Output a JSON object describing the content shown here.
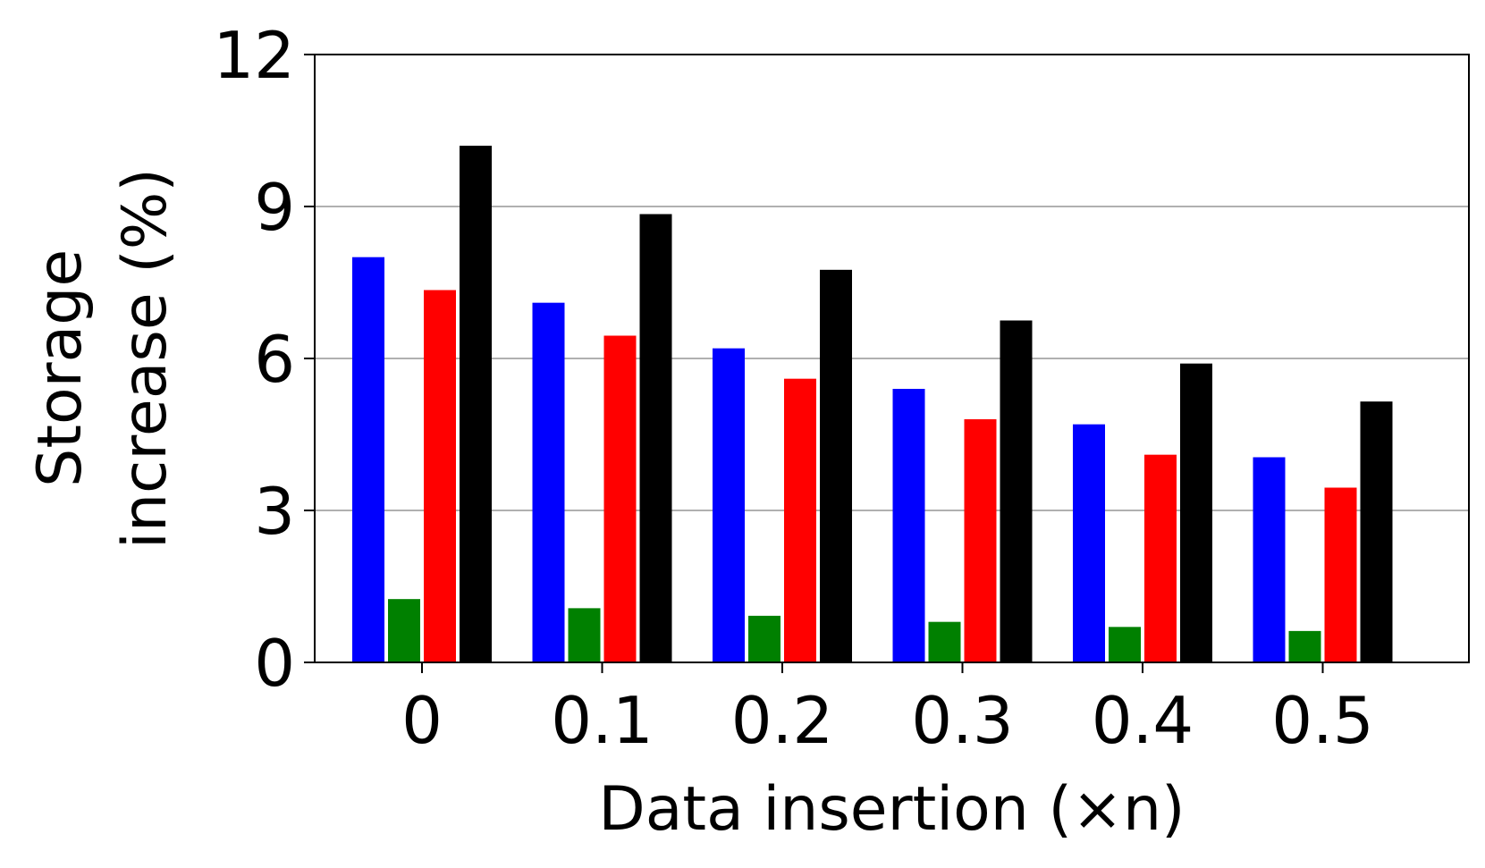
{
  "chart_data": {
    "type": "bar",
    "title": "",
    "xlabel": "Data insertion (×n)",
    "ylabel_lines": [
      "Storage",
      "increase (%)"
    ],
    "categories": [
      "0",
      "0.1",
      "0.2",
      "0.3",
      "0.4",
      "0.5"
    ],
    "series": [
      {
        "color": "#0000ff",
        "values": [
          8.0,
          7.1,
          6.2,
          5.4,
          4.7,
          4.05
        ]
      },
      {
        "color": "#008000",
        "values": [
          1.25,
          1.07,
          0.92,
          0.8,
          0.7,
          0.62
        ]
      },
      {
        "color": "#ff0000",
        "values": [
          7.35,
          6.45,
          5.6,
          4.8,
          4.1,
          3.45
        ]
      },
      {
        "color": "#000000",
        "values": [
          10.2,
          8.85,
          7.75,
          6.75,
          5.9,
          5.15
        ]
      }
    ],
    "ylim": [
      0,
      12
    ],
    "yticks": [
      "0",
      "3",
      "6",
      "9",
      "12"
    ],
    "grid": "horizontal",
    "legend": "none"
  }
}
